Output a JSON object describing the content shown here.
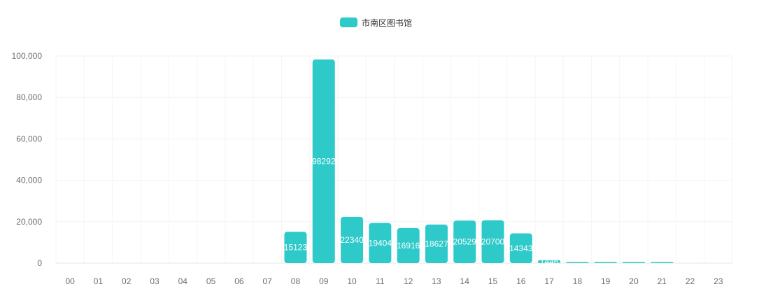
{
  "legend": {
    "label": "市南区图书馆",
    "color": "#2ec9c9"
  },
  "chart_data": {
    "type": "bar",
    "categories": [
      "00",
      "01",
      "02",
      "03",
      "04",
      "05",
      "06",
      "07",
      "08",
      "09",
      "10",
      "11",
      "12",
      "13",
      "14",
      "15",
      "16",
      "17",
      "18",
      "19",
      "20",
      "21",
      "22",
      "23"
    ],
    "series": [
      {
        "name": "市南区图书馆",
        "values": [
          0,
          0,
          0,
          0,
          0,
          0,
          0,
          0,
          15123,
          98292,
          22340,
          19404,
          16916,
          18627,
          20529,
          20700,
          14343,
          1446,
          400,
          300,
          350,
          250,
          0,
          0
        ]
      }
    ],
    "y_ticks": [
      "0",
      "20,000",
      "40,000",
      "60,000",
      "80,000",
      "100,000"
    ],
    "ylim": [
      0,
      100000
    ],
    "grid": true,
    "legend_position": "top-center",
    "bar_color": "#2ec9c9"
  }
}
